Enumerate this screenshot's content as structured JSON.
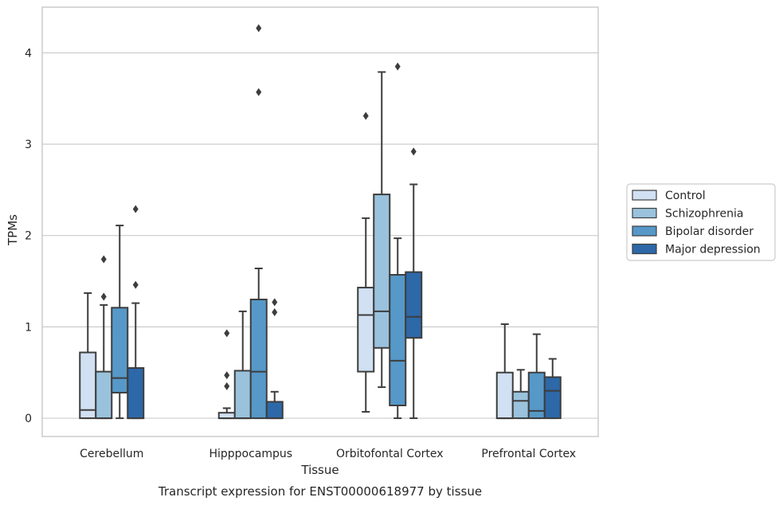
{
  "caption": "Transcript expression for ENST00000618977 by tissue",
  "chart_data": {
    "type": "box",
    "xlabel": "Tissue",
    "ylabel": "TPMs",
    "ylim": [
      -0.2,
      4.5
    ],
    "yticks": [
      0,
      1,
      2,
      3,
      4
    ],
    "grid": "horizontal",
    "legend_position": "right",
    "categories": [
      "Cerebellum",
      "Hipppocampus",
      "Orbitofontal Cortex",
      "Prefrontal Cortex"
    ],
    "series": [
      {
        "name": "Control",
        "color": "#d1e0f2",
        "boxes": [
          {
            "q1": 0,
            "median": 0.09,
            "q3": 0.72,
            "whisker_low": 0,
            "whisker_high": 1.37,
            "outliers": []
          },
          {
            "q1": 0,
            "median": 0.0,
            "q3": 0.06,
            "whisker_low": 0,
            "whisker_high": 0.11,
            "outliers": [
              0.35,
              0.47,
              0.93
            ]
          },
          {
            "q1": 0.51,
            "median": 1.13,
            "q3": 1.43,
            "whisker_low": 0.07,
            "whisker_high": 2.19,
            "outliers": [
              3.31
            ]
          },
          {
            "q1": 0,
            "median": 0.0,
            "q3": 0.5,
            "whisker_low": 0,
            "whisker_high": 1.03,
            "outliers": []
          }
        ]
      },
      {
        "name": "Schizophrenia",
        "color": "#9ac2dc",
        "boxes": [
          {
            "q1": 0,
            "median": 0.0,
            "q3": 0.51,
            "whisker_low": 0,
            "whisker_high": 1.24,
            "outliers": [
              1.33,
              1.74
            ]
          },
          {
            "q1": 0,
            "median": 0.0,
            "q3": 0.52,
            "whisker_low": 0,
            "whisker_high": 1.17,
            "outliers": []
          },
          {
            "q1": 0.77,
            "median": 1.17,
            "q3": 2.45,
            "whisker_low": 0.34,
            "whisker_high": 3.79,
            "outliers": []
          },
          {
            "q1": 0,
            "median": 0.19,
            "q3": 0.29,
            "whisker_low": 0,
            "whisker_high": 0.53,
            "outliers": []
          }
        ]
      },
      {
        "name": "Bipolar disorder",
        "color": "#5698c8",
        "boxes": [
          {
            "q1": 0.28,
            "median": 0.44,
            "q3": 1.21,
            "whisker_low": 0,
            "whisker_high": 2.11,
            "outliers": []
          },
          {
            "q1": 0,
            "median": 0.51,
            "q3": 1.3,
            "whisker_low": 0,
            "whisker_high": 1.64,
            "outliers": [
              3.57,
              4.27
            ]
          },
          {
            "q1": 0.14,
            "median": 0.63,
            "q3": 1.57,
            "whisker_low": 0,
            "whisker_high": 1.97,
            "outliers": [
              3.85
            ]
          },
          {
            "q1": 0,
            "median": 0.08,
            "q3": 0.5,
            "whisker_low": 0,
            "whisker_high": 0.92,
            "outliers": []
          }
        ]
      },
      {
        "name": "Major depression",
        "color": "#2d68a8",
        "boxes": [
          {
            "q1": 0,
            "median": 0.0,
            "q3": 0.55,
            "whisker_low": 0,
            "whisker_high": 1.26,
            "outliers": [
              1.46,
              2.29
            ]
          },
          {
            "q1": 0,
            "median": 0.0,
            "q3": 0.18,
            "whisker_low": 0,
            "whisker_high": 0.29,
            "outliers": [
              1.16,
              1.27
            ]
          },
          {
            "q1": 0.88,
            "median": 1.11,
            "q3": 1.6,
            "whisker_low": 0,
            "whisker_high": 2.56,
            "outliers": [
              2.92
            ]
          },
          {
            "q1": 0,
            "median": 0.3,
            "q3": 0.45,
            "whisker_low": 0,
            "whisker_high": 0.65,
            "outliers": []
          }
        ]
      }
    ]
  }
}
